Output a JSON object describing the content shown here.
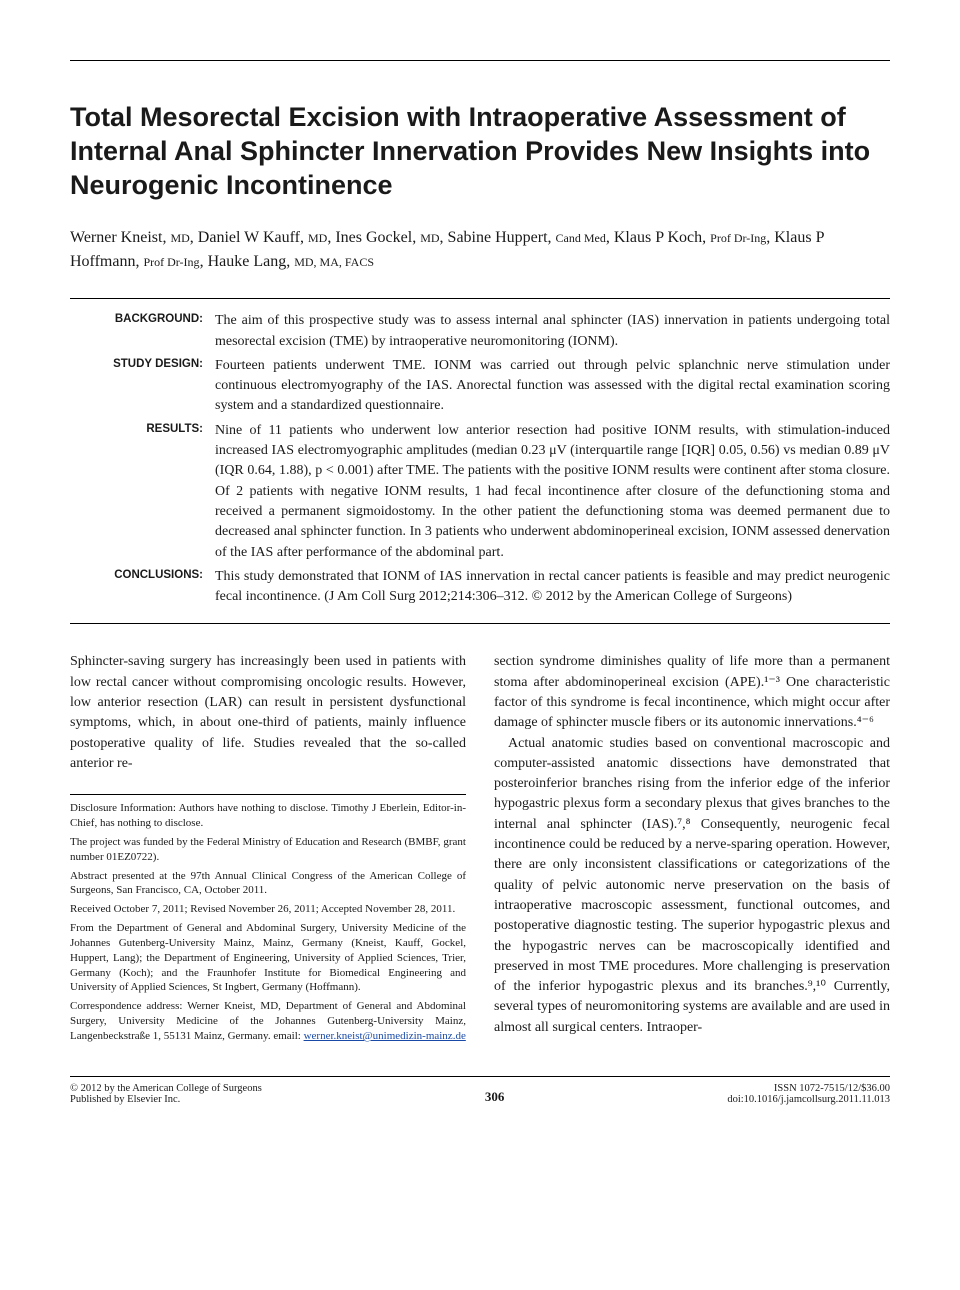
{
  "title": "Total Mesorectal Excision with Intraoperative Assessment of Internal Anal Sphincter Innervation Provides New Insights into Neurogenic Incontinence",
  "authors_html": "Werner Kneist, <span class=\"suffix\">MD</span>, Daniel W Kauff, <span class=\"suffix\">MD</span>, Ines Gockel, <span class=\"suffix\">MD</span>, Sabine Huppert, <span class=\"suffix\">Cand Med</span>, Klaus P Koch, <span class=\"suffix\">Prof Dr-Ing</span>, Klaus P Hoffmann, <span class=\"suffix\">Prof Dr-Ing</span>, Hauke Lang, <span class=\"suffix\">MD, MA, FACS</span>",
  "abstract": {
    "sections": [
      {
        "label": "BACKGROUND:",
        "text": "The aim of this prospective study was to assess internal anal sphincter (IAS) innervation in patients undergoing total mesorectal excision (TME) by intraoperative neuromonitoring (IONM)."
      },
      {
        "label": "STUDY DESIGN:",
        "text": "Fourteen patients underwent TME. IONM was carried out through pelvic splanchnic nerve stimulation under continuous electromyography of the IAS. Anorectal function was assessed with the digital rectal examination scoring system and a standardized questionnaire."
      },
      {
        "label": "RESULTS:",
        "text": "Nine of 11 patients who underwent low anterior resection had positive IONM results, with stimulation-induced increased IAS electromyographic amplitudes (median 0.23 μV (interquartile range [IQR] 0.05, 0.56) vs median 0.89 μV (IQR 0.64, 1.88), p < 0.001) after TME. The patients with the positive IONM results were continent after stoma closure. Of 2 patients with negative IONM results, 1 had fecal incontinence after closure of the defunctioning stoma and received a permanent sigmoidostomy. In the other patient the defunctioning stoma was deemed permanent due to decreased anal sphincter function. In 3 patients who underwent abdominoperineal excision, IONM assessed denervation of the IAS after performance of the abdominal part."
      },
      {
        "label": "CONCLUSIONS:",
        "text": "This study demonstrated that IONM of IAS innervation in rectal cancer patients is feasible and may predict neurogenic fecal incontinence. (J Am Coll Surg 2012;214:306–312. © 2012 by the American College of Surgeons)"
      }
    ]
  },
  "body": {
    "p1": "Sphincter-saving surgery has increasingly been used in patients with low rectal cancer without compromising oncologic results. However, low anterior resection (LAR) can result in persistent dysfunctional symptoms, which, in about one-third of patients, mainly influence postoperative quality of life. Studies revealed that the so-called anterior re-",
    "p1_cont": "section syndrome diminishes quality of life more than a permanent stoma after abdominoperineal excision (APE).¹⁻³ One characteristic factor of this syndrome is fecal incontinence, which might occur after damage of sphincter muscle fibers or its autonomic innervations.⁴⁻⁶",
    "p2": "Actual anatomic studies based on conventional macroscopic and computer-assisted anatomic dissections have demonstrated that posteroinferior branches rising from the inferior edge of the inferior hypogastric plexus form a secondary plexus that gives branches to the internal anal sphincter (IAS).⁷,⁸ Consequently, neurogenic fecal incontinence could be reduced by a nerve-sparing operation. However, there are only inconsistent classifications or categorizations of the quality of pelvic autonomic nerve preservation on the basis of intraoperative macroscopic assessment, functional outcomes, and postoperative diagnostic testing. The superior hypogastric plexus and the hypogastric nerves can be macroscopically identified and preserved in most TME procedures. More challenging is preservation of the inferior hypogastric plexus and its branches.⁹,¹⁰ Currently, several types of neuromonitoring systems are available and are used in almost all surgical centers. Intraoper-"
  },
  "footnotes": {
    "disclosure": "Disclosure Information: Authors have nothing to disclose. Timothy J Eberlein, Editor-in-Chief, has nothing to disclose.",
    "funding": "The project was funded by the Federal Ministry of Education and Research (BMBF, grant number 01EZ0722).",
    "presented": "Abstract presented at the 97th Annual Clinical Congress of the American College of Surgeons, San Francisco, CA, October 2011.",
    "received": "Received October 7, 2011; Revised November 26, 2011; Accepted November 28, 2011.",
    "affiliations": "From the Department of General and Abdominal Surgery, University Medicine of the Johannes Gutenberg-University Mainz, Mainz, Germany (Kneist, Kauff, Gockel, Huppert, Lang); the Department of Engineering, University of Applied Sciences, Trier, Germany (Koch); and the Fraunhofer Institute for Biomedical Engineering and University of Applied Sciences, St Ingbert, Germany (Hoffmann).",
    "correspondence": "Correspondence address: Werner Kneist, MD, Department of General and Abdominal Surgery, University Medicine of the Johannes Gutenberg-University Mainz, Langenbeckstraße 1, 55131 Mainz, Germany. email: ",
    "email": "werner.kneist@unimedizin-mainz.de"
  },
  "footer": {
    "copyright": "© 2012 by the American College of Surgeons",
    "publisher": "Published by Elsevier Inc.",
    "page_number": "306",
    "issn": "ISSN 1072-7515/12/$36.00",
    "doi": "doi:10.1016/j.jamcollsurg.2011.11.013"
  }
}
